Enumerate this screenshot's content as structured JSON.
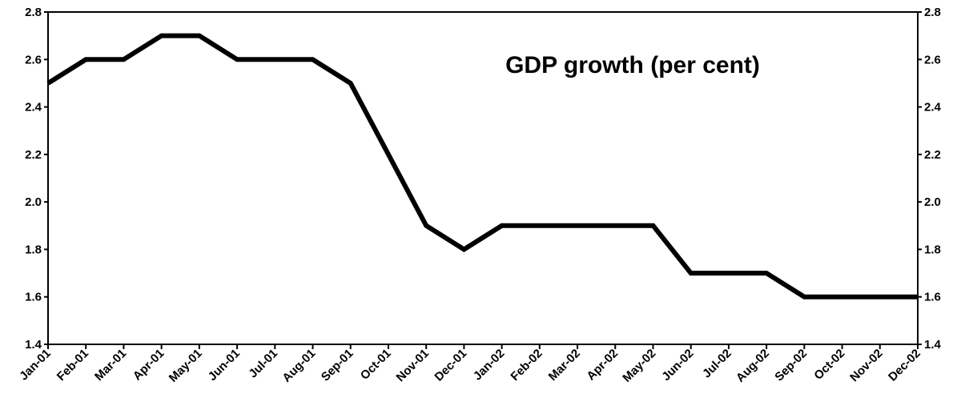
{
  "chart_data": {
    "type": "line",
    "title": "GDP growth (per cent)",
    "xlabel": "",
    "ylabel": "",
    "ylim": [
      1.4,
      2.8
    ],
    "yticks": [
      "1.4",
      "1.6",
      "1.8",
      "2.0",
      "2.2",
      "2.4",
      "2.6",
      "2.8"
    ],
    "secondary_y_axis": true,
    "grid": false,
    "legend": "none",
    "line_color": "#000000",
    "categories": [
      "Jan-01",
      "Feb-01",
      "Mar-01",
      "Apr-01",
      "May-01",
      "Jun-01",
      "Jul-01",
      "Aug-01",
      "Sep-01",
      "Oct-01",
      "Nov-01",
      "Dec-01",
      "Jan-02",
      "Feb-02",
      "Mar-02",
      "Apr-02",
      "May-02",
      "Jun-02",
      "Jul-02",
      "Aug-02",
      "Sep-02",
      "Oct-02",
      "Nov-02",
      "Dec-02"
    ],
    "series": [
      {
        "values": [
          2.5,
          2.6,
          2.6,
          2.7,
          2.7,
          2.6,
          2.6,
          2.6,
          2.5,
          2.2,
          1.9,
          1.8,
          1.9,
          1.9,
          1.9,
          1.9,
          1.9,
          1.7,
          1.7,
          1.7,
          1.6,
          1.6,
          1.6,
          1.6
        ]
      }
    ]
  }
}
